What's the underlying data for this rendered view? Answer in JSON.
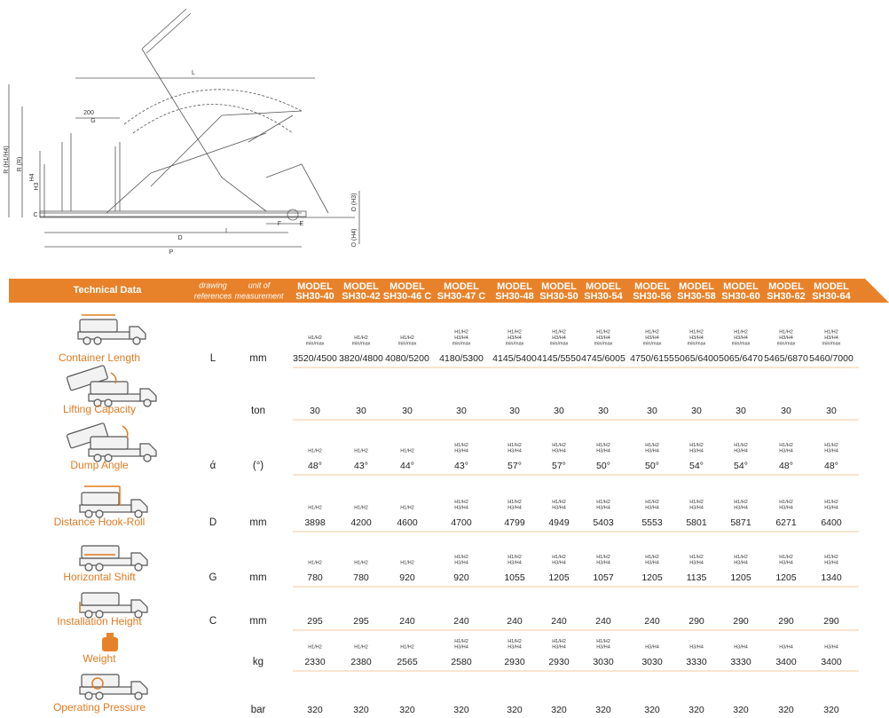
{
  "diagram": {
    "labels": [
      "L",
      "200",
      "G",
      "R (H1/H4)",
      "R (R)",
      "H4",
      "H3",
      "C",
      "O (H3)",
      "O (H4)",
      "D",
      "P",
      "E",
      "F",
      "I"
    ]
  },
  "table": {
    "header": {
      "title": "Technical Data",
      "references": [
        "drawing",
        "references"
      ],
      "units": [
        "unit of",
        "measurement"
      ],
      "models": [
        [
          "MODEL",
          "SH30-40"
        ],
        [
          "MODEL",
          "SH30-42"
        ],
        [
          "MODEL",
          "SH30-46 C"
        ],
        [
          "MODEL",
          "SH30-47 C"
        ],
        [
          "MODEL",
          "SH30-48"
        ],
        [
          "MODEL",
          "SH30-50"
        ],
        [
          "MODEL",
          "SH30-54"
        ],
        [
          "MODEL",
          "SH30-56"
        ],
        [
          "MODEL",
          "SH30-58"
        ],
        [
          "MODEL",
          "SH30-60"
        ],
        [
          "MODEL",
          "SH30-62"
        ],
        [
          "MODEL",
          "SH30-64"
        ]
      ]
    },
    "rows": [
      {
        "label": "Container Length",
        "reference": "L",
        "unit": "mm",
        "notes": [
          [
            "H1/H2",
            "min/max"
          ],
          [
            "H1/H2",
            "min/max"
          ],
          [
            "H1/H2",
            "min/max"
          ],
          [
            "H1/H2",
            "H3/H4",
            "min/max"
          ],
          [
            "H1/H2",
            "H3/H4",
            "min/max"
          ],
          [
            "H1/H2",
            "H3/H4",
            "min/max"
          ],
          [
            "H1/H2",
            "H3/H4",
            "min/max"
          ],
          [
            "H1/H2",
            "H3/H4",
            "min/max"
          ],
          [
            "H1/H2",
            "H3/H4",
            "min/max"
          ],
          [
            "H1/H2",
            "H3/H4",
            "min/max"
          ],
          [
            "H1/H2",
            "H3/H4",
            "min/max"
          ],
          [
            "H1/H2",
            "H3/H4",
            "min/max"
          ]
        ],
        "values": [
          "3520/4500",
          "3820/4800",
          "4080/5200",
          "4180/5300",
          "4145/5400",
          "4145/5550",
          "4745/6005",
          "4750/6155",
          "5065/6400",
          "5065/6470",
          "5465/6870",
          "5460/7000"
        ]
      },
      {
        "label": "Lifting Capacity",
        "unit": "ton",
        "values": [
          30,
          30,
          30,
          30,
          30,
          30,
          30,
          30,
          30,
          30,
          30,
          30
        ]
      },
      {
        "label": "Dump Angle",
        "reference": "ά",
        "unit": "(°)",
        "notes": [
          [
            "H1/H2"
          ],
          [
            "H1/H2"
          ],
          [
            "H1/H2"
          ],
          [
            "H1/H2",
            "H3/H4"
          ],
          [
            "H1/H2",
            "H3/H4"
          ],
          [
            "H1/H2",
            "H3/H4"
          ],
          [
            "H1/H2",
            "H3/H4"
          ],
          [
            "H1/H2",
            "H3/H4"
          ],
          [
            "H1/H2",
            "H3/H4"
          ],
          [
            "H1/H2",
            "H3/H4"
          ],
          [
            "H1/H2",
            "H3/H4"
          ],
          [
            "H1/H2",
            "H3/H4"
          ]
        ],
        "values": [
          "48°",
          "43°",
          "44°",
          "43°",
          "57°",
          "57°",
          "50°",
          "50°",
          "54°",
          "54°",
          "48°",
          "48°"
        ]
      },
      {
        "label": "Distance Hook-Roll",
        "reference": "D",
        "unit": "mm",
        "notes": [
          [
            "H1/H2"
          ],
          [
            "H1/H2"
          ],
          [
            "H1/H2"
          ],
          [
            "H1/H2",
            "H3/H4"
          ],
          [
            "H1/H2",
            "H3/H4"
          ],
          [
            "H1/H2",
            "H3/H4"
          ],
          [
            "H1/H2",
            "H3/H4"
          ],
          [
            "H1/H2",
            "H3/H4"
          ],
          [
            "H1/H2",
            "H3/H4"
          ],
          [
            "H1/H2",
            "H3/H4"
          ],
          [
            "H1/H2",
            "H3/H4"
          ],
          [
            "H1/H2",
            "H3/H4"
          ]
        ],
        "values": [
          3898,
          4200,
          4600,
          4700,
          4799,
          4949,
          5403,
          5553,
          5801,
          5871,
          6271,
          6400
        ]
      },
      {
        "label": "Horizontal Shift",
        "reference": "G",
        "unit": "mm",
        "notes": [
          [
            "H1/H2"
          ],
          [
            "H1/H2"
          ],
          [
            "H1/H2"
          ],
          [
            "H1/H2",
            "H3/H4"
          ],
          [
            "H1/H2",
            "H3/H4"
          ],
          [
            "H1/H2",
            "H3/H4"
          ],
          [
            "H1/H2",
            "H3/H4"
          ],
          [
            "H1/H2",
            "H3/H4"
          ],
          [
            "H1/H2",
            "H3/H4"
          ],
          [
            "H1/H2",
            "H3/H4"
          ],
          [
            "H1/H2",
            "H3/H4"
          ],
          [
            "H1/H2",
            "H3/H4"
          ]
        ],
        "values": [
          780,
          780,
          920,
          920,
          1055,
          1205,
          1057,
          1205,
          1135,
          1205,
          1205,
          1340
        ]
      },
      {
        "label": "Installation Height",
        "reference": "C",
        "unit": "mm",
        "values": [
          295,
          295,
          240,
          240,
          240,
          240,
          240,
          240,
          290,
          290,
          290,
          290
        ]
      },
      {
        "label": "Weight",
        "unit": "kg",
        "notes": [
          [
            "H1/H2"
          ],
          [
            "H1/H2"
          ],
          [
            "H1/H2"
          ],
          [
            "H1/H2",
            "H3/H4"
          ],
          [
            "H1/H2",
            "H3/H4"
          ],
          [
            "H1/H2",
            "H3/H4"
          ],
          [
            "H1/H2",
            "H3/H4"
          ],
          [
            "H3/H4"
          ],
          [
            "H3/H4"
          ],
          [
            "H3/H4"
          ],
          [
            "H3/H4"
          ],
          [
            "H3/H4"
          ]
        ],
        "values": [
          2330,
          2380,
          2565,
          2580,
          2930,
          2930,
          3030,
          3030,
          3330,
          3330,
          3400,
          3400
        ]
      },
      {
        "label": "Operating Pressure",
        "unit": "bar",
        "values": [
          320,
          320,
          320,
          320,
          320,
          320,
          320,
          320,
          320,
          320,
          320,
          320
        ]
      }
    ]
  }
}
